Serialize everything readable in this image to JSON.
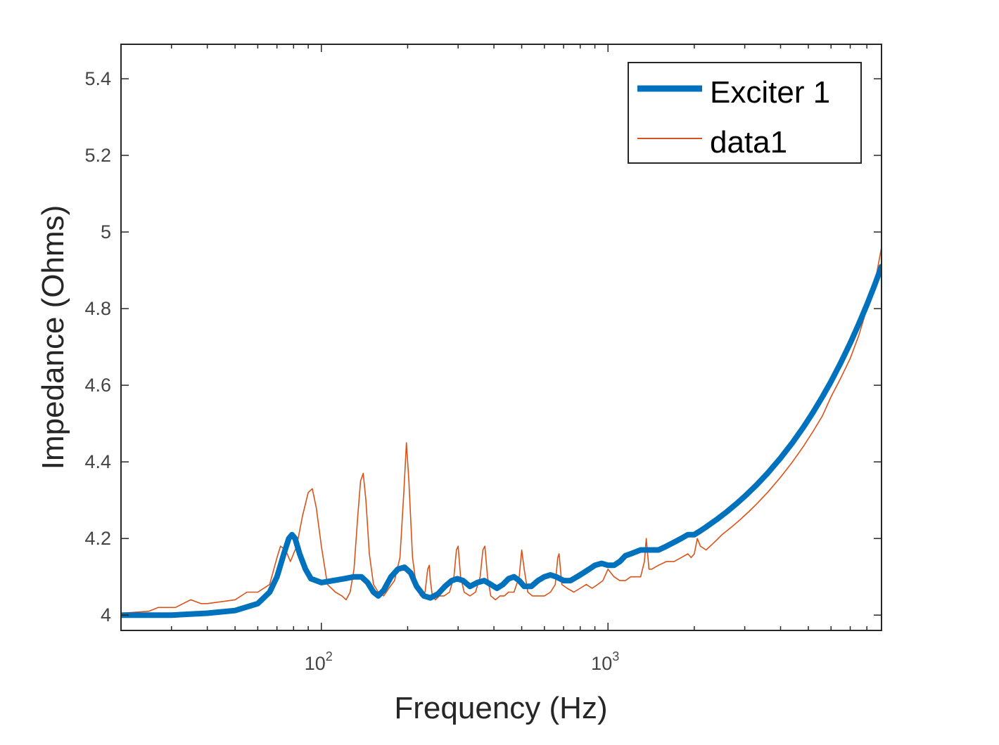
{
  "chart_data": {
    "type": "line",
    "xlabel": "Frequency (Hz)",
    "ylabel": "Impedance (Ohms)",
    "xscale": "log",
    "xlim": [
      20,
      9000
    ],
    "ylim": [
      3.96,
      5.49
    ],
    "x_ticks": [
      {
        "value": 100,
        "base": "10",
        "exp": "2"
      },
      {
        "value": 1000,
        "base": "10",
        "exp": "3"
      }
    ],
    "y_ticks": [
      {
        "value": 4.0,
        "label": "4"
      },
      {
        "value": 4.2,
        "label": "4.2"
      },
      {
        "value": 4.4,
        "label": "4.4"
      },
      {
        "value": 4.6,
        "label": "4.6"
      },
      {
        "value": 4.8,
        "label": "4.8"
      },
      {
        "value": 5.0,
        "label": "5"
      },
      {
        "value": 5.2,
        "label": "5.2"
      },
      {
        "value": 5.4,
        "label": "5.4"
      }
    ],
    "grid": false,
    "box": true,
    "legend": {
      "position": "top-right"
    },
    "series": [
      {
        "name": "Exciter 1",
        "color": "#0072BD",
        "style": "thick",
        "x": [
          20,
          30,
          40,
          50,
          60,
          66,
          70,
          74,
          77,
          79,
          81,
          84,
          88,
          92,
          100,
          110,
          120,
          130,
          138,
          145,
          152,
          158,
          165,
          175,
          185,
          195,
          205,
          215,
          228,
          240,
          255,
          270,
          285,
          298,
          312,
          330,
          350,
          370,
          390,
          410,
          430,
          450,
          470,
          490,
          510,
          540,
          570,
          600,
          630,
          660,
          700,
          740,
          780,
          820,
          860,
          900,
          950,
          1000,
          1050,
          1100,
          1150,
          1200,
          1300,
          1400,
          1500,
          1600,
          1700,
          1800,
          1900,
          2000,
          2100,
          2200,
          2400,
          2600,
          2800,
          3000,
          3300,
          3600,
          4000,
          4400,
          4800,
          5200,
          5600,
          6000,
          6500,
          7000,
          7500,
          8000,
          8500,
          9000
        ],
        "y": [
          4.0,
          4.0,
          4.005,
          4.012,
          4.03,
          4.06,
          4.1,
          4.16,
          4.2,
          4.21,
          4.2,
          4.16,
          4.12,
          4.095,
          4.085,
          4.09,
          4.095,
          4.1,
          4.1,
          4.085,
          4.06,
          4.05,
          4.065,
          4.1,
          4.12,
          4.125,
          4.11,
          4.075,
          4.05,
          4.045,
          4.055,
          4.075,
          4.09,
          4.095,
          4.09,
          4.075,
          4.085,
          4.09,
          4.08,
          4.07,
          4.08,
          4.095,
          4.1,
          4.09,
          4.075,
          4.075,
          4.09,
          4.1,
          4.105,
          4.1,
          4.09,
          4.09,
          4.1,
          4.11,
          4.12,
          4.13,
          4.135,
          4.13,
          4.13,
          4.14,
          4.155,
          4.16,
          4.17,
          4.17,
          4.17,
          4.18,
          4.19,
          4.2,
          4.21,
          4.21,
          4.22,
          4.23,
          4.25,
          4.27,
          4.29,
          4.31,
          4.34,
          4.37,
          4.41,
          4.45,
          4.49,
          4.53,
          4.57,
          4.61,
          4.66,
          4.71,
          4.76,
          4.81,
          4.86,
          4.91
        ]
      },
      {
        "name": "data1",
        "color": "#D95319",
        "style": "thin",
        "x": [
          20,
          25,
          27,
          31,
          35,
          38,
          40,
          50,
          55,
          60,
          66,
          70,
          72,
          75,
          78,
          82,
          86,
          90,
          93,
          96,
          100,
          105,
          112,
          118,
          122,
          126,
          130,
          134,
          137,
          140,
          143,
          147,
          152,
          158,
          165,
          172,
          180,
          188,
          194,
          198,
          202,
          208,
          215,
          222,
          230,
          235,
          238,
          240,
          244,
          250,
          258,
          268,
          280,
          290,
          296,
          300,
          306,
          315,
          330,
          345,
          358,
          366,
          372,
          380,
          390,
          405,
          420,
          435,
          450,
          470,
          490,
          500,
          510,
          525,
          545,
          570,
          600,
          630,
          655,
          668,
          675,
          690,
          720,
          760,
          800,
          840,
          880,
          920,
          960,
          1000,
          1050,
          1100,
          1150,
          1200,
          1250,
          1300,
          1340,
          1360,
          1390,
          1420,
          1500,
          1600,
          1700,
          1800,
          1900,
          1950,
          2000,
          2050,
          2100,
          2200,
          2350,
          2500,
          2700,
          2900,
          3100,
          3300,
          3600,
          4000,
          4400,
          4800,
          5200,
          5600,
          6000,
          6500,
          7000,
          7500,
          8000,
          8500,
          9000
        ],
        "y": [
          4.005,
          4.01,
          4.02,
          4.02,
          4.04,
          4.03,
          4.03,
          4.04,
          4.06,
          4.06,
          4.08,
          4.15,
          4.18,
          4.17,
          4.14,
          4.18,
          4.26,
          4.32,
          4.33,
          4.28,
          4.18,
          4.08,
          4.06,
          4.05,
          4.04,
          4.06,
          4.12,
          4.26,
          4.35,
          4.37,
          4.3,
          4.16,
          4.08,
          4.06,
          4.05,
          4.07,
          4.09,
          4.15,
          4.32,
          4.45,
          4.35,
          4.15,
          4.07,
          4.05,
          4.06,
          4.12,
          4.13,
          4.09,
          4.05,
          4.04,
          4.05,
          4.05,
          4.06,
          4.1,
          4.17,
          4.18,
          4.1,
          4.06,
          4.05,
          4.06,
          4.1,
          4.17,
          4.18,
          4.1,
          4.05,
          4.04,
          4.05,
          4.05,
          4.06,
          4.06,
          4.1,
          4.17,
          4.12,
          4.06,
          4.05,
          4.05,
          4.05,
          4.06,
          4.08,
          4.15,
          4.16,
          4.08,
          4.07,
          4.06,
          4.07,
          4.08,
          4.07,
          4.08,
          4.09,
          4.12,
          4.1,
          4.09,
          4.09,
          4.1,
          4.1,
          4.1,
          4.14,
          4.2,
          4.12,
          4.12,
          4.13,
          4.14,
          4.14,
          4.15,
          4.16,
          4.15,
          4.16,
          4.2,
          4.18,
          4.17,
          4.19,
          4.21,
          4.23,
          4.25,
          4.27,
          4.29,
          4.32,
          4.36,
          4.4,
          4.44,
          4.48,
          4.52,
          4.57,
          4.62,
          4.67,
          4.73,
          4.8,
          4.86,
          4.96
        ]
      }
    ]
  }
}
